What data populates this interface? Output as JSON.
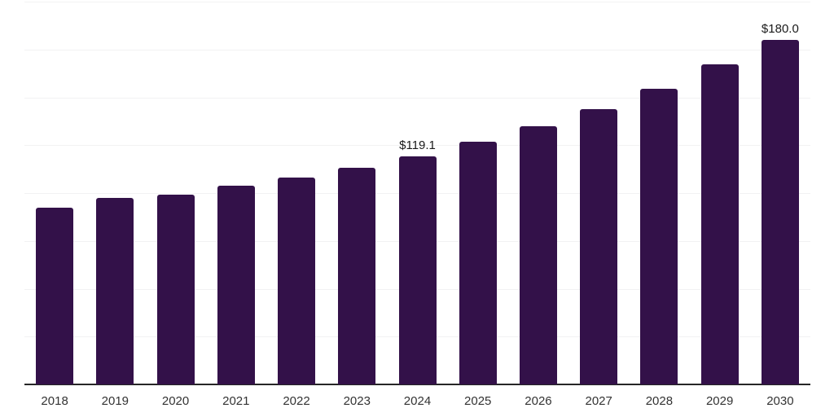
{
  "chart": {
    "background_color": "#ffffff",
    "bar_color": "#331149",
    "gridline_color": "#f2f2f3",
    "axis_line_color": "#262626",
    "data_label_color": "#1a1a1a",
    "tick_label_color": "#333333"
  },
  "chart_data": {
    "type": "bar",
    "title": "",
    "xlabel": "",
    "ylabel": "",
    "categories": [
      "2018",
      "2019",
      "2020",
      "2021",
      "2022",
      "2023",
      "2024",
      "2025",
      "2026",
      "2027",
      "2028",
      "2029",
      "2030"
    ],
    "values": [
      92.5,
      97.6,
      99.2,
      103.8,
      108.0,
      113.2,
      119.1,
      126.9,
      135.0,
      143.8,
      154.3,
      167.2,
      180.0
    ],
    "data_labels": [
      null,
      null,
      null,
      null,
      null,
      null,
      "$119.1",
      null,
      null,
      null,
      null,
      null,
      "$180.0"
    ],
    "value_prefix": "$",
    "ylim": [
      0,
      200
    ],
    "gridline_step": 25,
    "grid": true,
    "legend": false,
    "y_axis_labels_visible": false,
    "x_axis_line_visible": true
  }
}
